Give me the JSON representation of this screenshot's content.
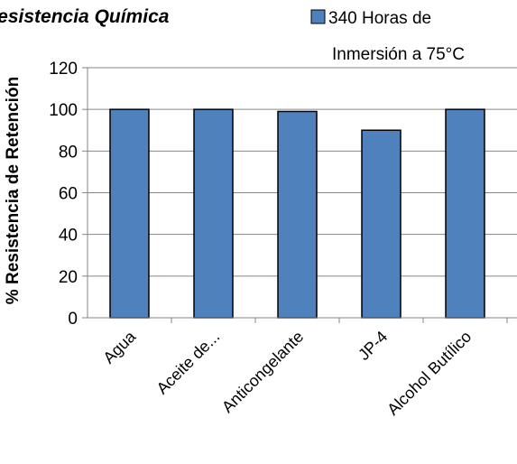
{
  "chart_data": {
    "type": "bar",
    "title": "Resistencia Química",
    "ylabel": "% Resistencia de Retención",
    "xlabel": "",
    "categories": [
      "Agua",
      "Aceite de...",
      "Anticongelante",
      "JP-4",
      "Alcohol Butílico"
    ],
    "series": [
      {
        "name": "340 Horas de Inmersión a 75°C",
        "legend_lines": [
          "340 Horas de",
          "Inmersión a 75°C"
        ],
        "values": [
          100,
          100,
          99,
          90,
          100
        ],
        "color": "#4f81bd"
      }
    ],
    "ylim": [
      0,
      120
    ],
    "yticks": [
      0,
      20,
      40,
      60,
      80,
      100,
      120
    ],
    "grid": true,
    "legend_position": "top-right"
  }
}
